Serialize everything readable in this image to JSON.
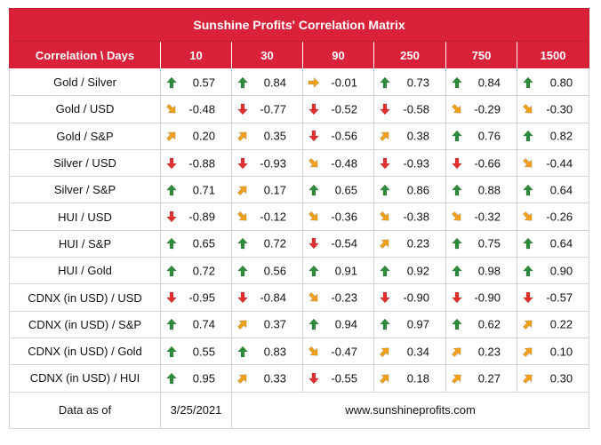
{
  "title": "Sunshine Profits' Correlation Matrix",
  "header_label": "Correlation \\ Days",
  "days": [
    "10",
    "30",
    "90",
    "250",
    "750",
    "1500"
  ],
  "colors": {
    "header_bg": "#d9223a",
    "up": "#2e8b3a",
    "down": "#e03030",
    "flat": "#f3a11b"
  },
  "rows": [
    {
      "pair": "Gold / Silver",
      "values": [
        "0.57",
        "0.84",
        "-0.01",
        "0.73",
        "0.84",
        "0.80"
      ],
      "icons": [
        "arrow-up",
        "arrow-up",
        "arrow-right",
        "arrow-up",
        "arrow-up",
        "arrow-up"
      ]
    },
    {
      "pair": "Gold / USD",
      "values": [
        "-0.48",
        "-0.77",
        "-0.52",
        "-0.58",
        "-0.29",
        "-0.30"
      ],
      "icons": [
        "arrow-down-right",
        "arrow-down",
        "arrow-down",
        "arrow-down",
        "arrow-down-right",
        "arrow-down-right"
      ]
    },
    {
      "pair": "Gold / S&P",
      "values": [
        "0.20",
        "0.35",
        "-0.56",
        "0.38",
        "0.76",
        "0.82"
      ],
      "icons": [
        "arrow-up-right",
        "arrow-up-right",
        "arrow-down",
        "arrow-up-right",
        "arrow-up",
        "arrow-up"
      ]
    },
    {
      "pair": "Silver / USD",
      "values": [
        "-0.88",
        "-0.93",
        "-0.48",
        "-0.93",
        "-0.66",
        "-0.44"
      ],
      "icons": [
        "arrow-down",
        "arrow-down",
        "arrow-down-right",
        "arrow-down",
        "arrow-down",
        "arrow-down-right"
      ]
    },
    {
      "pair": "Silver / S&P",
      "values": [
        "0.71",
        "0.17",
        "0.65",
        "0.86",
        "0.88",
        "0.64"
      ],
      "icons": [
        "arrow-up",
        "arrow-up-right",
        "arrow-up",
        "arrow-up",
        "arrow-up",
        "arrow-up"
      ]
    },
    {
      "pair": "HUI / USD",
      "values": [
        "-0.89",
        "-0.12",
        "-0.36",
        "-0.38",
        "-0.32",
        "-0.26"
      ],
      "icons": [
        "arrow-down",
        "arrow-down-right",
        "arrow-down-right",
        "arrow-down-right",
        "arrow-down-right",
        "arrow-down-right"
      ]
    },
    {
      "pair": "HUI / S&P",
      "values": [
        "0.65",
        "0.72",
        "-0.54",
        "0.23",
        "0.75",
        "0.64"
      ],
      "icons": [
        "arrow-up",
        "arrow-up",
        "arrow-down",
        "arrow-up-right",
        "arrow-up",
        "arrow-up"
      ]
    },
    {
      "pair": "HUI / Gold",
      "values": [
        "0.72",
        "0.56",
        "0.91",
        "0.92",
        "0.98",
        "0.90"
      ],
      "icons": [
        "arrow-up",
        "arrow-up",
        "arrow-up",
        "arrow-up",
        "arrow-up",
        "arrow-up"
      ]
    },
    {
      "pair": "CDNX (in USD) / USD",
      "values": [
        "-0.95",
        "-0.84",
        "-0.23",
        "-0.90",
        "-0.90",
        "-0.57"
      ],
      "icons": [
        "arrow-down",
        "arrow-down",
        "arrow-down-right",
        "arrow-down",
        "arrow-down",
        "arrow-down"
      ]
    },
    {
      "pair": "CDNX (in USD) / S&P",
      "values": [
        "0.74",
        "0.37",
        "0.94",
        "0.97",
        "0.62",
        "0.22"
      ],
      "icons": [
        "arrow-up",
        "arrow-up-right",
        "arrow-up",
        "arrow-up",
        "arrow-up",
        "arrow-up-right"
      ]
    },
    {
      "pair": "CDNX (in USD) / Gold",
      "values": [
        "0.55",
        "0.83",
        "-0.47",
        "0.34",
        "0.23",
        "0.10"
      ],
      "icons": [
        "arrow-up",
        "arrow-up",
        "arrow-down-right",
        "arrow-up-right",
        "arrow-up-right",
        "arrow-up-right"
      ]
    },
    {
      "pair": "CDNX (in USD) / HUI",
      "values": [
        "0.95",
        "0.33",
        "-0.55",
        "0.18",
        "0.27",
        "0.30"
      ],
      "icons": [
        "arrow-up",
        "arrow-up-right",
        "arrow-down",
        "arrow-up-right",
        "arrow-up-right",
        "arrow-up-right"
      ]
    }
  ],
  "footer": {
    "label": "Data as of",
    "date": "3/25/2021",
    "website": "www.sunshineprofits.com"
  }
}
